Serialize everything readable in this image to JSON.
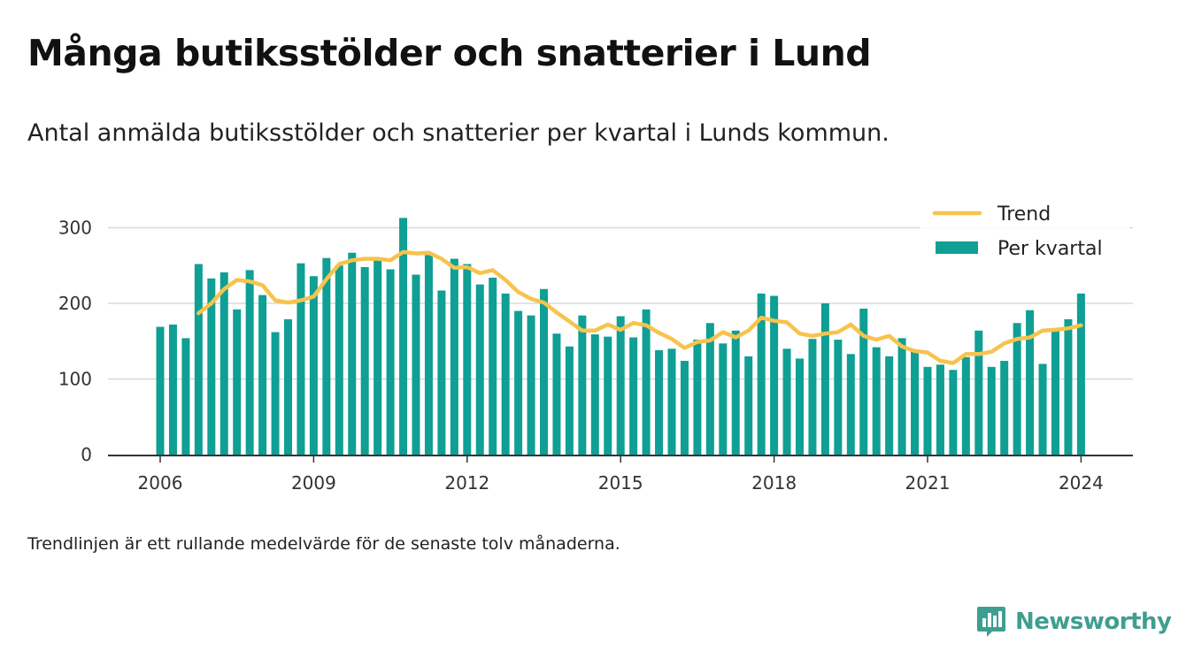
{
  "title": "Många butiksstölder och snatterier i Lund",
  "subtitle": "Antal anmälda butiksstölder och snatterier per kvartal i Lunds kommun.",
  "footnote": "Trendlinjen är ett rullande medelvärde för de senaste tolv månaderna.",
  "brand": {
    "name": "Newsworthy",
    "color": "#3f9e90"
  },
  "colors": {
    "bars": "#0f9f94",
    "trend": "#f7c34d",
    "grid": "#d9d9d9",
    "axis": "#333333"
  },
  "chart_data": {
    "type": "bar",
    "x_start": "2006 Q1",
    "categories": [
      "2006 Q1",
      "2006 Q2",
      "2006 Q3",
      "2006 Q4",
      "2007 Q1",
      "2007 Q2",
      "2007 Q3",
      "2007 Q4",
      "2008 Q1",
      "2008 Q2",
      "2008 Q3",
      "2008 Q4",
      "2009 Q1",
      "2009 Q2",
      "2009 Q3",
      "2009 Q4",
      "2010 Q1",
      "2010 Q2",
      "2010 Q3",
      "2010 Q4",
      "2011 Q1",
      "2011 Q2",
      "2011 Q3",
      "2011 Q4",
      "2012 Q1",
      "2012 Q2",
      "2012 Q3",
      "2012 Q4",
      "2013 Q1",
      "2013 Q2",
      "2013 Q3",
      "2013 Q4",
      "2014 Q1",
      "2014 Q2",
      "2014 Q3",
      "2014 Q4",
      "2015 Q1",
      "2015 Q2",
      "2015 Q3",
      "2015 Q4",
      "2016 Q1",
      "2016 Q2",
      "2016 Q3",
      "2016 Q4",
      "2017 Q1",
      "2017 Q2",
      "2017 Q3",
      "2017 Q4",
      "2018 Q1",
      "2018 Q2",
      "2018 Q3",
      "2018 Q4",
      "2019 Q1",
      "2019 Q2",
      "2019 Q3",
      "2019 Q4",
      "2020 Q1",
      "2020 Q2",
      "2020 Q3",
      "2020 Q4",
      "2021 Q1",
      "2021 Q2",
      "2021 Q3",
      "2021 Q4",
      "2022 Q1",
      "2022 Q2",
      "2022 Q3",
      "2022 Q4",
      "2023 Q1",
      "2023 Q2",
      "2023 Q3",
      "2023 Q4",
      "2024 Q1"
    ],
    "series": [
      {
        "name": "Per kvartal",
        "kind": "bar",
        "values": [
          169,
          172,
          154,
          252,
          233,
          241,
          192,
          244,
          211,
          162,
          179,
          253,
          236,
          260,
          250,
          267,
          248,
          258,
          245,
          313,
          238,
          264,
          217,
          259,
          252,
          225,
          234,
          213,
          190,
          184,
          219,
          160,
          143,
          184,
          159,
          156,
          183,
          155,
          192,
          138,
          140,
          124,
          152,
          174,
          147,
          164,
          130,
          213,
          210,
          140,
          127,
          153,
          200,
          152,
          133,
          193,
          142,
          130,
          154,
          138,
          116,
          119,
          112,
          129,
          164,
          116,
          124,
          174,
          191,
          120,
          164,
          179,
          213
        ]
      },
      {
        "name": "Trend",
        "kind": "line",
        "values": [
          null,
          null,
          null,
          187,
          200,
          219,
          231,
          229,
          224,
          204,
          201,
          204,
          209,
          232,
          252,
          257,
          259,
          259,
          257,
          268,
          266,
          267,
          259,
          247,
          248,
          240,
          244,
          231,
          215,
          206,
          201,
          188,
          176,
          164,
          164,
          172,
          165,
          174,
          171,
          161,
          153,
          141,
          149,
          151,
          162,
          155,
          164,
          181,
          177,
          175,
          160,
          157,
          160,
          162,
          172,
          157,
          152,
          157,
          143,
          137,
          135,
          124,
          121,
          133,
          133,
          136,
          147,
          153,
          155,
          164,
          165,
          167,
          171
        ]
      }
    ],
    "x_ticks": [
      "2006",
      "2009",
      "2012",
      "2015",
      "2018",
      "2021",
      "2024"
    ],
    "y_ticks": [
      0,
      100,
      200,
      300
    ],
    "ylim": [
      0,
      320
    ],
    "grid": true,
    "legend": {
      "position": "top-right",
      "entries": [
        "Trend",
        "Per kvartal"
      ]
    },
    "xlabel": "",
    "ylabel": ""
  }
}
